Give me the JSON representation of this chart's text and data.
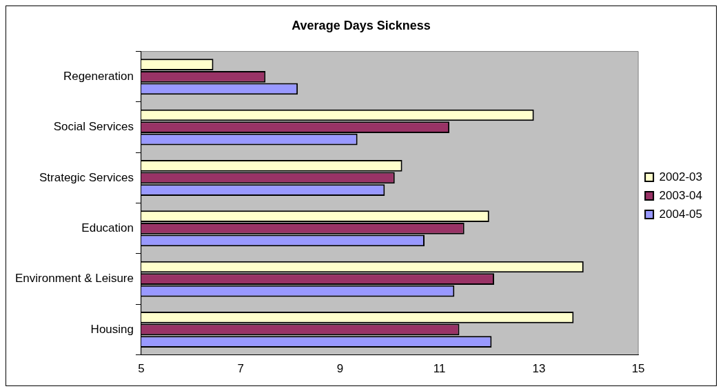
{
  "chart_data": {
    "type": "bar",
    "orientation": "horizontal",
    "title": "Average Days Sickness",
    "categories": [
      "Regeneration",
      "Social Services",
      "Strategic Services",
      "Education",
      "Environment & Leisure",
      "Housing"
    ],
    "series": [
      {
        "name": "2002-03",
        "color": "#ffffcc",
        "values": [
          6.45,
          12.9,
          10.25,
          12.0,
          13.9,
          13.7
        ]
      },
      {
        "name": "2003-04",
        "color": "#993366",
        "values": [
          7.5,
          11.2,
          10.1,
          11.5,
          12.1,
          11.4
        ]
      },
      {
        "name": "2004-05",
        "color": "#9999ff",
        "values": [
          8.15,
          9.35,
          9.9,
          10.7,
          11.3,
          12.05
        ]
      }
    ],
    "xlim": [
      5,
      15
    ],
    "xticks": [
      5,
      7,
      9,
      11,
      13,
      15
    ],
    "grid": false,
    "legend": "right"
  }
}
